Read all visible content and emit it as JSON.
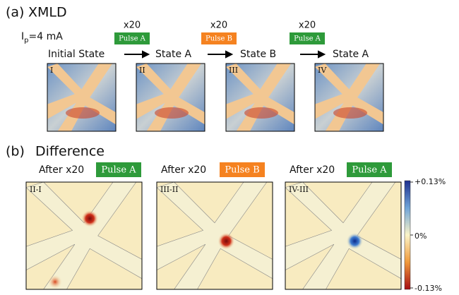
{
  "panel_a": {
    "label": "(a)",
    "title": "XMLD",
    "current": "I",
    "current_sub": "p",
    "current_value": "=4 mA",
    "states": [
      "Initial State",
      "State A",
      "State B",
      "State A"
    ],
    "steps": [
      {
        "count": "x20",
        "pulse": "Pulse A"
      },
      {
        "count": "x20",
        "pulse": "Pulse B"
      },
      {
        "count": "x20",
        "pulse": "Pulse A"
      }
    ],
    "images": [
      "I",
      "II",
      "III",
      "IV"
    ]
  },
  "panel_b": {
    "label": "(b)",
    "title": "Difference",
    "maps": [
      {
        "caption": "After x20",
        "pulse": "Pulse A",
        "label": "II-I"
      },
      {
        "caption": "After x20",
        "pulse": "Pulse B",
        "label": "III-II"
      },
      {
        "caption": "After x20",
        "pulse": "Pulse A",
        "label": "IV-III"
      }
    ],
    "colorbar": {
      "max": "+0.13%",
      "mid": "0%",
      "min": "-0.13%"
    }
  }
}
